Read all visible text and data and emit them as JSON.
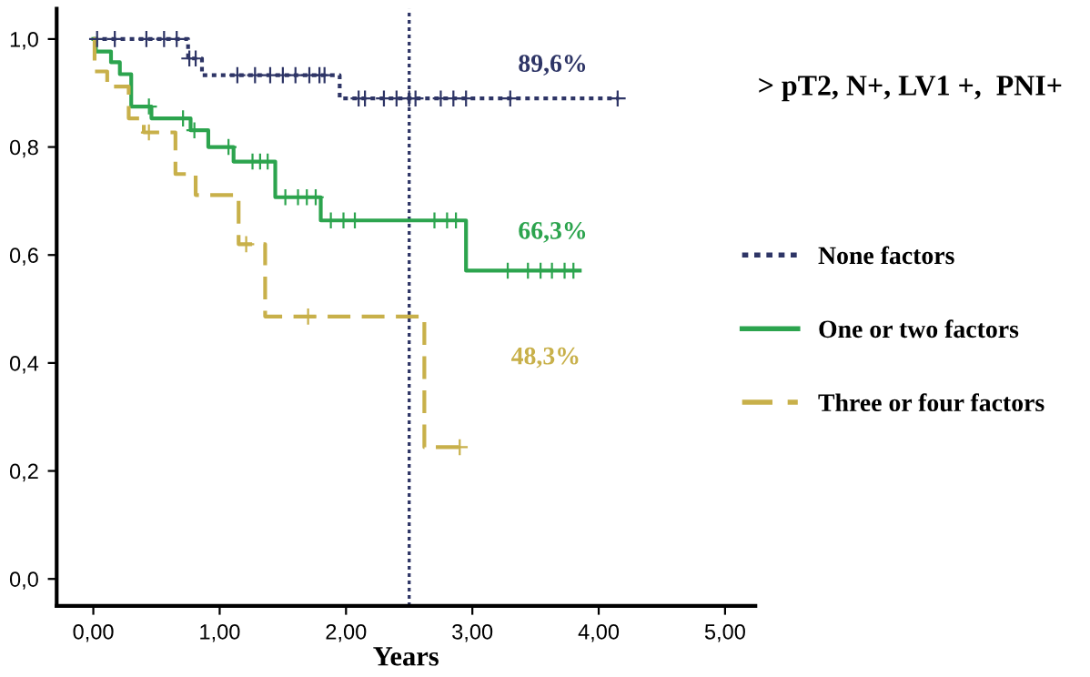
{
  "chart_data": {
    "type": "step",
    "title": "> pT2, N+, LV1 +,  PNI+",
    "xlabel": "Years",
    "xlim": [
      -0.29,
      5.24
    ],
    "ylim": [
      -0.05,
      1.056
    ],
    "xticks": [
      {
        "value": 0,
        "label": "0,00"
      },
      {
        "value": 1,
        "label": "1,00"
      },
      {
        "value": 2,
        "label": "2,00"
      },
      {
        "value": 3,
        "label": "3,00"
      },
      {
        "value": 4,
        "label": "4,00"
      },
      {
        "value": 5,
        "label": "5,00"
      }
    ],
    "yticks": [
      {
        "value": 0,
        "label": "0,0"
      },
      {
        "value": 0.2,
        "label": "0,2"
      },
      {
        "value": 0.4,
        "label": "0,4"
      },
      {
        "value": 0.6,
        "label": "0,6"
      },
      {
        "value": 0.8,
        "label": "0,8"
      },
      {
        "value": 1,
        "label": "1,0"
      }
    ],
    "legend": "right",
    "grid": false,
    "series": [
      {
        "name": "None factors",
        "line_style": "dotted",
        "color": "#2e3566",
        "x": [
          0,
          0.71,
          0.75,
          0.86,
          1.95,
          4.16
        ],
        "values": [
          1,
          1,
          0.964,
          0.933,
          0.89,
          0.89
        ]
      },
      {
        "name": "One or two factors",
        "line_style": "solid",
        "color": "#2ca44e",
        "x": [
          0,
          0.02,
          0.14,
          0.21,
          0.3,
          0.46,
          0.77,
          0.91,
          1.11,
          1.44,
          1.8,
          2.95,
          3.85
        ],
        "values": [
          1,
          0.977,
          0.957,
          0.935,
          0.875,
          0.853,
          0.831,
          0.8,
          0.773,
          0.707,
          0.664,
          0.571,
          0.571
        ]
      },
      {
        "name": "Three or four factors",
        "line_style": "dashed",
        "color": "#c8b04a",
        "x": [
          0,
          0.01,
          0.11,
          0.28,
          0.4,
          0.65,
          0.81,
          1.15,
          1.36,
          2.62,
          2.94
        ],
        "values": [
          1,
          0.94,
          0.912,
          0.853,
          0.827,
          0.75,
          0.711,
          0.62,
          0.486,
          0.244,
          0.244
        ]
      },
      {
        "type": "scatter",
        "marker": "cross",
        "color": "#2e3566",
        "x": [
          0.03,
          0.17,
          0.42,
          0.56,
          0.66,
          0.76,
          0.81,
          1.14,
          1.28,
          1.4,
          1.5,
          1.6,
          1.71,
          1.79,
          1.83,
          2.1,
          2.15,
          2.3,
          2.4,
          2.5,
          2.55,
          2.75,
          2.85,
          2.95,
          3.3,
          4.15
        ],
        "values": [
          1,
          1,
          1,
          1,
          1,
          0.964,
          0.964,
          0.933,
          0.933,
          0.933,
          0.933,
          0.933,
          0.933,
          0.933,
          0.933,
          0.89,
          0.89,
          0.89,
          0.89,
          0.89,
          0.89,
          0.89,
          0.89,
          0.89,
          0.89,
          0.89
        ]
      },
      {
        "type": "scatter",
        "marker": "cross",
        "color": "#2ca44e",
        "x": [
          0.44,
          0.71,
          0.8,
          1.07,
          1.26,
          1.32,
          1.38,
          1.52,
          1.62,
          1.69,
          1.76,
          1.88,
          1.98,
          2.07,
          2.7,
          2.8,
          2.87,
          3.28,
          3.44,
          3.54,
          3.63,
          3.73,
          3.8
        ],
        "values": [
          0.875,
          0.853,
          0.831,
          0.8,
          0.773,
          0.773,
          0.773,
          0.707,
          0.707,
          0.707,
          0.707,
          0.664,
          0.664,
          0.664,
          0.664,
          0.664,
          0.664,
          0.571,
          0.571,
          0.571,
          0.571,
          0.571,
          0.571
        ]
      },
      {
        "type": "scatter",
        "marker": "cross",
        "color": "#c8b04a",
        "x": [
          0.44,
          1.21,
          1.7,
          2.9
        ],
        "values": [
          0.827,
          0.62,
          0.486,
          0.244
        ]
      }
    ],
    "ref_lines": [
      {
        "axis": "x",
        "value": 2.5,
        "color": "#2e3566",
        "line_style": "dotted"
      }
    ],
    "annotations": [
      "89,6%",
      "66,3%",
      "48,3%"
    ]
  }
}
